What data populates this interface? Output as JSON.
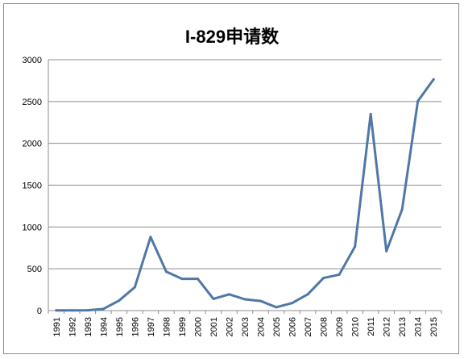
{
  "chart_data": {
    "type": "line",
    "title": "I-829申请数",
    "xlabel": "",
    "ylabel": "",
    "categories": [
      "1991",
      "1992",
      "1993",
      "1994",
      "1995",
      "1996",
      "1997",
      "1998",
      "1999",
      "2000",
      "2001",
      "2002",
      "2003",
      "2004",
      "2005",
      "2006",
      "2007",
      "2008",
      "2009",
      "2010",
      "2011",
      "2012",
      "2013",
      "2014",
      "2015"
    ],
    "series": [
      {
        "values": [
          2,
          2,
          4,
          20,
          120,
          280,
          880,
          465,
          380,
          380,
          140,
          195,
          135,
          115,
          40,
          90,
          195,
          390,
          430,
          765,
          2350,
          710,
          1210,
          2505,
          2765
        ]
      }
    ],
    "ylim": [
      0,
      3000
    ],
    "yticks": [
      0,
      500,
      1000,
      1500,
      2000,
      2500,
      3000
    ],
    "grid": true,
    "legend": "none",
    "line_color": "#4f77a8",
    "grid_color": "#8c8c8c"
  }
}
